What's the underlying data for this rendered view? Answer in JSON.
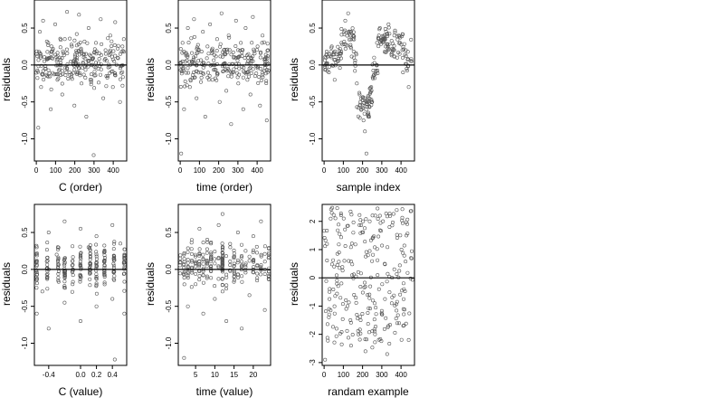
{
  "chart_data": [
    {
      "type": "scatter",
      "xlabel": "C (order)",
      "ylabel": "residuals",
      "xlim": [
        -10,
        470
      ],
      "ylim": [
        -1.3,
        0.88
      ],
      "xticks": [
        0,
        100,
        200,
        300,
        400
      ],
      "xtick_labels": [
        "0",
        "100",
        "200",
        "300",
        "400"
      ],
      "yticks": [
        0.5,
        0.0,
        -0.5,
        -1.0
      ],
      "ytick_labels": [
        "0.5",
        "0.0",
        "-0.5",
        "-1.0"
      ],
      "reference_line_y": 0,
      "marker": "open-circle",
      "n_points": 450,
      "pattern": "random scatter mostly between -0.85 and 0.75, one outlier near -1.2 at x 300",
      "points": [
        [
          5,
          0.12
        ],
        [
          10,
          -0.85
        ],
        [
          18,
          0.45
        ],
        [
          25,
          -0.3
        ],
        [
          35,
          0.6
        ],
        [
          42,
          0.05
        ],
        [
          55,
          -0.15
        ],
        [
          62,
          0.3
        ],
        [
          75,
          -0.6
        ],
        [
          85,
          0.2
        ],
        [
          98,
          0.55
        ],
        [
          110,
          -0.2
        ],
        [
          122,
          0.1
        ],
        [
          135,
          -0.4
        ],
        [
          148,
          0.35
        ],
        [
          160,
          0.72
        ],
        [
          172,
          -0.1
        ],
        [
          185,
          0.25
        ],
        [
          198,
          -0.55
        ],
        [
          210,
          0.42
        ],
        [
          222,
          0.68
        ],
        [
          235,
          -0.25
        ],
        [
          248,
          0.15
        ],
        [
          260,
          -0.7
        ],
        [
          272,
          0.5
        ],
        [
          285,
          0.0
        ],
        [
          298,
          -1.22
        ],
        [
          310,
          0.3
        ],
        [
          322,
          -0.05
        ],
        [
          335,
          0.62
        ],
        [
          348,
          -0.45
        ],
        [
          360,
          0.2
        ],
        [
          372,
          -0.15
        ],
        [
          385,
          0.4
        ],
        [
          398,
          -0.3
        ],
        [
          410,
          0.58
        ],
        [
          422,
          0.1
        ],
        [
          435,
          -0.5
        ],
        [
          448,
          0.25
        ],
        [
          455,
          0.35
        ]
      ]
    },
    {
      "type": "scatter",
      "xlabel": "time (order)",
      "ylabel": "residuals",
      "xlim": [
        -10,
        470
      ],
      "ylim": [
        -1.3,
        0.88
      ],
      "xticks": [
        0,
        100,
        200,
        300,
        400
      ],
      "xtick_labels": [
        "0",
        "100",
        "200",
        "300",
        "400"
      ],
      "yticks": [
        0.5,
        0.0,
        -0.5,
        -1.0
      ],
      "ytick_labels": [
        "0.5",
        "0.0",
        "-0.5",
        "-1.0"
      ],
      "reference_line_y": 0,
      "marker": "open-circle",
      "n_points": 450,
      "pattern": "random scatter between about -0.8 and 0.75, one outlier near -1.2 at x 5",
      "points": [
        [
          5,
          -1.2
        ],
        [
          12,
          0.3
        ],
        [
          20,
          -0.6
        ],
        [
          30,
          0.15
        ],
        [
          40,
          0.5
        ],
        [
          50,
          -0.3
        ],
        [
          60,
          0.05
        ],
        [
          72,
          0.62
        ],
        [
          85,
          -0.45
        ],
        [
          95,
          0.2
        ],
        [
          108,
          -0.1
        ],
        [
          118,
          0.45
        ],
        [
          130,
          -0.7
        ],
        [
          142,
          0.25
        ],
        [
          155,
          0.55
        ],
        [
          168,
          -0.2
        ],
        [
          180,
          0.0
        ],
        [
          192,
          0.35
        ],
        [
          205,
          -0.5
        ],
        [
          215,
          0.7
        ],
        [
          228,
          0.15
        ],
        [
          240,
          -0.35
        ],
        [
          252,
          0.4
        ],
        [
          265,
          -0.8
        ],
        [
          278,
          0.1
        ],
        [
          290,
          0.6
        ],
        [
          302,
          -0.25
        ],
        [
          315,
          0.3
        ],
        [
          328,
          -0.6
        ],
        [
          340,
          0.5
        ],
        [
          352,
          0.05
        ],
        [
          365,
          -0.4
        ],
        [
          378,
          0.65
        ],
        [
          390,
          -0.15
        ],
        [
          402,
          0.25
        ],
        [
          415,
          -0.55
        ],
        [
          428,
          0.4
        ],
        [
          440,
          0.0
        ],
        [
          450,
          -0.75
        ]
      ]
    },
    {
      "type": "scatter",
      "xlabel": "sample index",
      "ylabel": "residuals",
      "xlim": [
        -10,
        470
      ],
      "ylim": [
        -1.3,
        0.88
      ],
      "xticks": [
        0,
        100,
        200,
        300,
        400
      ],
      "xtick_labels": [
        "0",
        "100",
        "200",
        "300",
        "400"
      ],
      "yticks": [
        0.5,
        0.0,
        -0.5,
        -1.0
      ],
      "ytick_labels": [
        "0.5",
        "0.0",
        "-0.5",
        "-1.0"
      ],
      "reference_line_y": 0,
      "marker": "open-circle",
      "n_points": 450,
      "pattern": "structured scatter: positive cluster near 100-150, deep negative dip near 200-230 (to about -1.2), positive cluster near 300-400",
      "points": [
        [
          10,
          0.1
        ],
        [
          25,
          -0.1
        ],
        [
          40,
          0.25
        ],
        [
          55,
          -0.2
        ],
        [
          70,
          0.05
        ],
        [
          90,
          0.3
        ],
        [
          110,
          0.6
        ],
        [
          125,
          0.7
        ],
        [
          140,
          0.45
        ],
        [
          155,
          0.1
        ],
        [
          170,
          -0.25
        ],
        [
          185,
          -0.4
        ],
        [
          195,
          -0.6
        ],
        [
          205,
          -0.75
        ],
        [
          212,
          -0.9
        ],
        [
          220,
          -1.2
        ],
        [
          230,
          -0.7
        ],
        [
          245,
          -0.3
        ],
        [
          260,
          0.1
        ],
        [
          275,
          0.3
        ],
        [
          290,
          0.5
        ],
        [
          305,
          0.35
        ],
        [
          320,
          0.25
        ],
        [
          335,
          0.55
        ],
        [
          350,
          0.15
        ],
        [
          365,
          0.4
        ],
        [
          380,
          0.1
        ],
        [
          395,
          0.3
        ],
        [
          410,
          -0.1
        ],
        [
          425,
          0.2
        ],
        [
          440,
          -0.3
        ],
        [
          455,
          0.05
        ]
      ]
    },
    {
      "type": "scatter",
      "xlabel": "C (value)",
      "ylabel": "residuals",
      "xlim": [
        -0.58,
        0.58
      ],
      "ylim": [
        -1.3,
        0.88
      ],
      "xticks": [
        -0.4,
        0.0,
        0.2,
        0.4
      ],
      "xtick_labels": [
        "-0.4",
        "0.0",
        "0.2",
        "0.4"
      ],
      "yticks": [
        0.5,
        0.0,
        -0.5,
        -1.0
      ],
      "ytick_labels": [
        "0.5",
        "0.0",
        "-0.5",
        "-1.0"
      ],
      "reference_line_y": 0,
      "marker": "open-circle",
      "n_points": 450,
      "pattern": "points stacked in vertical columns at discrete C values (about -0.55, -0.4, -0.2, 0.0, 0.2, 0.4, 0.55), residuals from about -0.9 to 0.75, outlier near -1.2 at 0.43",
      "points": [
        [
          -0.55,
          0.3
        ],
        [
          -0.55,
          -0.6
        ],
        [
          -0.55,
          0.1
        ],
        [
          -0.48,
          -0.3
        ],
        [
          -0.4,
          0.5
        ],
        [
          -0.4,
          -0.8
        ],
        [
          -0.4,
          0.0
        ],
        [
          -0.3,
          0.2
        ],
        [
          -0.2,
          0.65
        ],
        [
          -0.2,
          -0.45
        ],
        [
          -0.2,
          0.15
        ],
        [
          -0.1,
          -0.2
        ],
        [
          0.0,
          0.55
        ],
        [
          0.0,
          -0.7
        ],
        [
          0.0,
          0.05
        ],
        [
          0.1,
          0.3
        ],
        [
          0.2,
          0.45
        ],
        [
          0.2,
          -0.5
        ],
        [
          0.2,
          -0.1
        ],
        [
          0.3,
          0.1
        ],
        [
          0.4,
          0.6
        ],
        [
          0.4,
          -0.4
        ],
        [
          0.43,
          -1.22
        ],
        [
          0.5,
          0.35
        ],
        [
          0.55,
          -0.6
        ],
        [
          0.55,
          0.2
        ]
      ]
    },
    {
      "type": "scatter",
      "xlabel": "time (value)",
      "ylabel": "residuals",
      "xlim": [
        0.5,
        24.5
      ],
      "ylim": [
        -1.3,
        0.88
      ],
      "xticks": [
        5,
        10,
        15,
        20
      ],
      "xtick_labels": [
        "5",
        "10",
        "15",
        "20"
      ],
      "yticks": [
        0.5,
        0.0,
        -0.5,
        -1.0
      ],
      "ytick_labels": [
        "0.5",
        "0.0",
        "-0.5",
        "-1.0"
      ],
      "reference_line_y": 0,
      "marker": "open-circle",
      "n_points": 450,
      "pattern": "points in columns at integer time values 1-24, denser column near 12, residuals about -0.85 to 0.75, outlier near -1.2 at time 2",
      "points": [
        [
          2,
          -1.2
        ],
        [
          2,
          0.2
        ],
        [
          3,
          -0.5
        ],
        [
          4,
          0.4
        ],
        [
          5,
          -0.2
        ],
        [
          6,
          0.55
        ],
        [
          7,
          -0.6
        ],
        [
          8,
          0.1
        ],
        [
          9,
          0.35
        ],
        [
          10,
          -0.4
        ],
        [
          11,
          0.6
        ],
        [
          12,
          0.75
        ],
        [
          12,
          -0.3
        ],
        [
          12,
          0.05
        ],
        [
          13,
          -0.7
        ],
        [
          14,
          0.3
        ],
        [
          15,
          -0.1
        ],
        [
          16,
          0.5
        ],
        [
          17,
          -0.8
        ],
        [
          18,
          0.25
        ],
        [
          19,
          -0.35
        ],
        [
          20,
          0.45
        ],
        [
          21,
          -0.15
        ],
        [
          22,
          0.65
        ],
        [
          23,
          -0.55
        ],
        [
          24,
          0.2
        ]
      ]
    },
    {
      "type": "scatter",
      "xlabel": "randam example",
      "ylabel": "residuals",
      "xlim": [
        -10,
        470
      ],
      "ylim": [
        -3.1,
        2.6
      ],
      "xticks": [
        0,
        100,
        200,
        300,
        400
      ],
      "xtick_labels": [
        "0",
        "100",
        "200",
        "300",
        "400"
      ],
      "yticks": [
        2,
        1,
        0,
        -1,
        -2,
        -3
      ],
      "ytick_labels": [
        "2",
        "1",
        "0",
        "-1",
        "-2",
        "-3"
      ],
      "reference_line_y": 0,
      "marker": "open-circle",
      "n_points": 450,
      "pattern": "uniform random noise between about -2.8 and 2.4",
      "points": [
        [
          5,
          -2.9
        ],
        [
          15,
          1.2
        ],
        [
          28,
          -0.5
        ],
        [
          40,
          2.3
        ],
        [
          52,
          0.4
        ],
        [
          65,
          -1.8
        ],
        [
          78,
          0.9
        ],
        [
          90,
          -0.2
        ],
        [
          102,
          2.1
        ],
        [
          115,
          -1.1
        ],
        [
          128,
          0.6
        ],
        [
          140,
          -2.4
        ],
        [
          152,
          1.6
        ],
        [
          165,
          -0.7
        ],
        [
          178,
          0.2
        ],
        [
          190,
          -1.5
        ],
        [
          202,
          2.0
        ],
        [
          215,
          -2.6
        ],
        [
          228,
          0.8
        ],
        [
          240,
          -0.3
        ],
        [
          252,
          1.4
        ],
        [
          265,
          -2.0
        ],
        [
          278,
          0.1
        ],
        [
          290,
          2.2
        ],
        [
          302,
          -1.3
        ],
        [
          315,
          0.5
        ],
        [
          328,
          -2.7
        ],
        [
          340,
          1.8
        ],
        [
          352,
          -0.9
        ],
        [
          365,
          0.3
        ],
        [
          378,
          2.4
        ],
        [
          390,
          -1.6
        ],
        [
          402,
          1.0
        ],
        [
          415,
          -0.4
        ],
        [
          428,
          1.5
        ],
        [
          440,
          -2.2
        ],
        [
          452,
          0.7
        ]
      ]
    }
  ]
}
